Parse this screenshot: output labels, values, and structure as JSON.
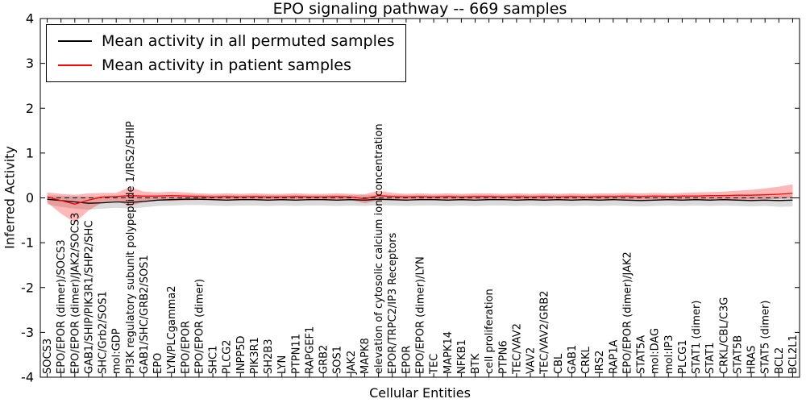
{
  "chart_data": {
    "type": "line",
    "title": "EPO signaling pathway -- 669 samples",
    "xlabel": "Cellular Entities",
    "ylabel": "Inferred Activity",
    "ylim": [
      -4,
      4
    ],
    "yticks": [
      -4,
      -3,
      -2,
      -1,
      0,
      1,
      2,
      3,
      4
    ],
    "grid": false,
    "legend_position": "upper left",
    "reference_line": {
      "y": 0,
      "color": "#000000",
      "style": "dashed"
    },
    "categories": [
      "SOCS3",
      "EPO/EPOR (dimer)/SOCS3",
      "EPO/EPOR (dimer)/JAK2/SOCS3",
      "GAB1/SHIP/PIK3R1/SHP2/SHC",
      "SHC/Grb2/SOS1",
      "mol:GDP",
      "PI3K regulatory subunit polypeptide 1/IRS2/SHIP",
      "GAB1/SHC/GRB2/SOS1",
      "EPO",
      "LYN/PLCgamma2",
      "EPO/EPOR",
      "EPO/EPOR (dimer)",
      "SHC1",
      "PLCG2",
      "INPP5D",
      "PIK3R1",
      "SH2B3",
      "LYN",
      "PTPN11",
      "RAPGEF1",
      "GRB2",
      "SOS1",
      "JAK2",
      "MAPK8",
      "elevation of cytosolic calcium ion concentration",
      "EPOR/TRPC2/IP3 Receptors",
      "EPOR",
      "EPO/EPOR (dimer)/LYN",
      "TEC",
      "MAPK14",
      "NFKB1",
      "BTK",
      "cell proliferation",
      "PTPN6",
      "TEC/VAV2",
      "VAV2",
      "TEC/VAV2/GRB2",
      "CBL",
      "GAB1",
      "CRKL",
      "IRS2",
      "RAP1A",
      "EPO/EPOR (dimer)/JAK2",
      "STAT5A",
      "mol:DAG",
      "mol:IP3",
      "PLCG1",
      "STAT1 (dimer)",
      "STAT1",
      "CRKL/CBL/C3G",
      "STAT5B",
      "HRAS",
      "STAT5 (dimer)",
      "BCL2",
      "BCL2L1"
    ],
    "series": [
      {
        "name": "Mean activity in all permuted samples",
        "color": "#000000",
        "band_color": "rgba(0,0,0,0.14)",
        "values": [
          -0.03,
          -0.06,
          -0.09,
          -0.12,
          -0.11,
          -0.09,
          -0.1,
          -0.08,
          -0.05,
          -0.04,
          -0.03,
          -0.03,
          -0.04,
          -0.05,
          -0.04,
          -0.04,
          -0.05,
          -0.04,
          -0.05,
          -0.04,
          -0.04,
          -0.05,
          -0.04,
          -0.05,
          -0.03,
          -0.04,
          -0.05,
          -0.04,
          -0.04,
          -0.05,
          -0.04,
          -0.05,
          -0.04,
          -0.04,
          -0.05,
          -0.04,
          -0.05,
          -0.04,
          -0.05,
          -0.04,
          -0.05,
          -0.04,
          -0.05,
          -0.06,
          -0.05,
          -0.04,
          -0.05,
          -0.04,
          -0.05,
          -0.04,
          -0.05,
          -0.06,
          -0.05,
          -0.06,
          -0.05
        ],
        "band_low": [
          -0.15,
          -0.2,
          -0.24,
          -0.26,
          -0.24,
          -0.22,
          -0.24,
          -0.21,
          -0.18,
          -0.17,
          -0.16,
          -0.16,
          -0.17,
          -0.18,
          -0.17,
          -0.17,
          -0.18,
          -0.17,
          -0.18,
          -0.17,
          -0.17,
          -0.18,
          -0.17,
          -0.18,
          -0.16,
          -0.17,
          -0.18,
          -0.17,
          -0.17,
          -0.18,
          -0.17,
          -0.18,
          -0.17,
          -0.17,
          -0.18,
          -0.17,
          -0.18,
          -0.17,
          -0.18,
          -0.17,
          -0.18,
          -0.17,
          -0.18,
          -0.19,
          -0.18,
          -0.17,
          -0.18,
          -0.17,
          -0.18,
          -0.17,
          -0.18,
          -0.19,
          -0.18,
          -0.2,
          -0.19
        ],
        "band_high": [
          0.06,
          0.05,
          0.04,
          0.03,
          0.03,
          0.04,
          0.04,
          0.05,
          0.06,
          0.06,
          0.07,
          0.07,
          0.06,
          0.06,
          0.06,
          0.06,
          0.06,
          0.06,
          0.06,
          0.06,
          0.06,
          0.06,
          0.06,
          0.06,
          0.07,
          0.06,
          0.06,
          0.06,
          0.06,
          0.06,
          0.06,
          0.06,
          0.06,
          0.06,
          0.06,
          0.06,
          0.06,
          0.06,
          0.06,
          0.06,
          0.06,
          0.06,
          0.06,
          0.05,
          0.06,
          0.06,
          0.06,
          0.06,
          0.06,
          0.06,
          0.06,
          0.05,
          0.06,
          0.05,
          0.06
        ]
      },
      {
        "name": "Mean activity in patient samples",
        "color": "#ff0000",
        "band_color": "rgba(255,0,0,0.28)",
        "values": [
          0.02,
          -0.06,
          -0.14,
          -0.05,
          0.02,
          0.03,
          0.05,
          0.04,
          0.04,
          0.05,
          0.04,
          0.03,
          0.02,
          0.03,
          0.02,
          0.03,
          0.02,
          0.02,
          0.03,
          0.02,
          0.02,
          0.03,
          0.02,
          -0.02,
          0.05,
          0.03,
          0.02,
          0.03,
          0.02,
          0.03,
          0.02,
          0.03,
          0.03,
          0.02,
          0.03,
          0.02,
          0.03,
          0.02,
          0.03,
          0.02,
          0.03,
          0.03,
          0.04,
          0.03,
          0.04,
          0.03,
          0.04,
          0.04,
          0.05,
          0.05,
          0.06,
          0.06,
          0.07,
          0.08,
          0.1
        ],
        "band_low": [
          -0.1,
          -0.35,
          -0.55,
          -0.28,
          -0.1,
          -0.07,
          -0.18,
          -0.09,
          -0.06,
          -0.07,
          -0.06,
          -0.05,
          -0.05,
          -0.04,
          -0.05,
          -0.04,
          -0.05,
          -0.04,
          -0.04,
          -0.05,
          -0.04,
          -0.04,
          -0.05,
          -0.12,
          -0.06,
          -0.05,
          -0.05,
          -0.04,
          -0.05,
          -0.04,
          -0.05,
          -0.04,
          -0.04,
          -0.05,
          -0.04,
          -0.05,
          -0.04,
          -0.05,
          -0.04,
          -0.05,
          -0.04,
          -0.04,
          -0.05,
          -0.05,
          -0.04,
          -0.05,
          -0.04,
          -0.04,
          -0.05,
          -0.05,
          -0.04,
          -0.04,
          -0.03,
          -0.02,
          0.0
        ],
        "band_high": [
          0.12,
          0.09,
          0.07,
          0.1,
          0.11,
          0.11,
          0.24,
          0.14,
          0.12,
          0.14,
          0.12,
          0.1,
          0.09,
          0.1,
          0.09,
          0.1,
          0.09,
          0.09,
          0.1,
          0.09,
          0.09,
          0.1,
          0.09,
          0.08,
          0.16,
          0.11,
          0.09,
          0.1,
          0.09,
          0.1,
          0.09,
          0.1,
          0.1,
          0.09,
          0.1,
          0.09,
          0.1,
          0.09,
          0.1,
          0.09,
          0.1,
          0.1,
          0.11,
          0.1,
          0.11,
          0.1,
          0.11,
          0.12,
          0.13,
          0.14,
          0.16,
          0.18,
          0.21,
          0.25,
          0.3
        ]
      }
    ]
  }
}
